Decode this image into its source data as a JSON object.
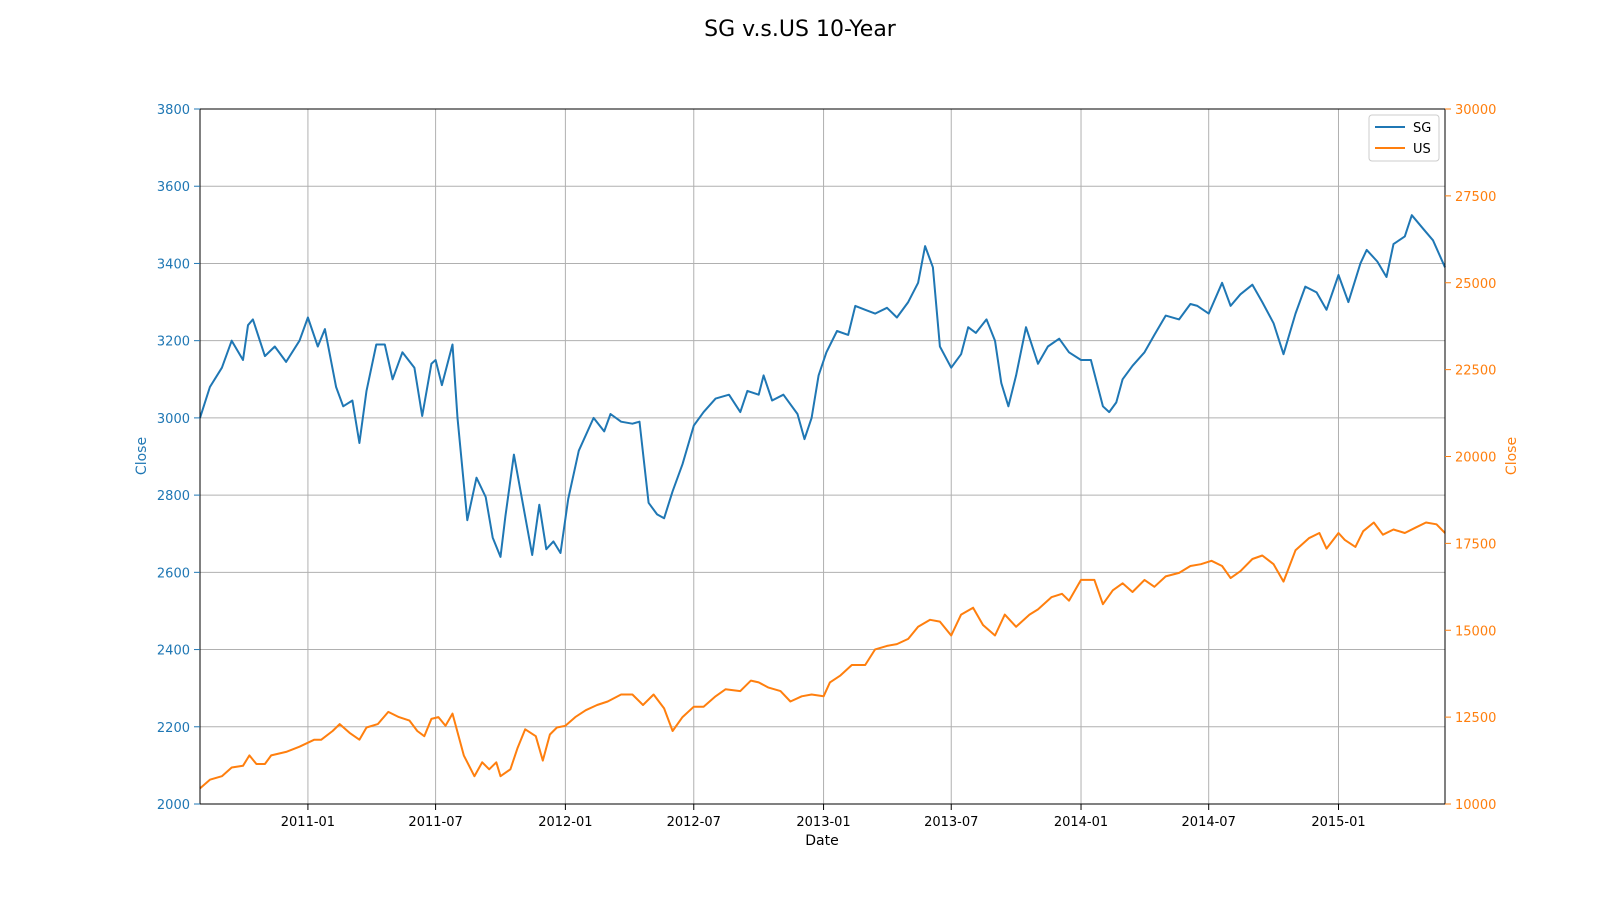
{
  "chart_data": {
    "type": "line",
    "title": "SG v.s.US 10-Year",
    "xlabel": "Date",
    "ylabel_left": "Close",
    "ylabel_right": "Close",
    "xlim": [
      "2010-08-01",
      "2015-06-01"
    ],
    "ylim_left": [
      2000,
      3800
    ],
    "ylim_right": [
      10000,
      30000
    ],
    "x_ticks": [
      "2011-01",
      "2011-07",
      "2012-01",
      "2012-07",
      "2013-01",
      "2013-07",
      "2014-01",
      "2014-07",
      "2015-01"
    ],
    "y_ticks_left": [
      2000,
      2200,
      2400,
      2600,
      2800,
      3000,
      3200,
      3400,
      3600,
      3800
    ],
    "y_ticks_right": [
      10000,
      12500,
      15000,
      17500,
      20000,
      22500,
      25000,
      27500,
      30000
    ],
    "grid": true,
    "legend_position": "top-right",
    "colors": {
      "SG": "#1f77b4",
      "US": "#ff7f0e",
      "axis": "#000000",
      "grid": "#b0b0b0"
    },
    "series": [
      {
        "name": "SG",
        "axis": "left",
        "points": [
          [
            "2010-08-01",
            3000
          ],
          [
            "2010-08-15",
            3080
          ],
          [
            "2010-09-01",
            3130
          ],
          [
            "2010-09-15",
            3200
          ],
          [
            "2010-10-01",
            3150
          ],
          [
            "2010-10-08",
            3240
          ],
          [
            "2010-10-15",
            3255
          ],
          [
            "2010-11-01",
            3160
          ],
          [
            "2010-11-15",
            3185
          ],
          [
            "2010-12-01",
            3145
          ],
          [
            "2010-12-20",
            3200
          ],
          [
            "2011-01-01",
            3260
          ],
          [
            "2011-01-15",
            3185
          ],
          [
            "2011-01-25",
            3230
          ],
          [
            "2011-02-10",
            3080
          ],
          [
            "2011-02-20",
            3030
          ],
          [
            "2011-03-05",
            3045
          ],
          [
            "2011-03-15",
            2935
          ],
          [
            "2011-03-25",
            3070
          ],
          [
            "2011-04-08",
            3190
          ],
          [
            "2011-04-20",
            3190
          ],
          [
            "2011-05-01",
            3100
          ],
          [
            "2011-05-15",
            3170
          ],
          [
            "2011-06-01",
            3130
          ],
          [
            "2011-06-12",
            3005
          ],
          [
            "2011-06-25",
            3140
          ],
          [
            "2011-07-01",
            3150
          ],
          [
            "2011-07-10",
            3085
          ],
          [
            "2011-07-25",
            3190
          ],
          [
            "2011-08-01",
            3000
          ],
          [
            "2011-08-15",
            2735
          ],
          [
            "2011-08-28",
            2845
          ],
          [
            "2011-09-10",
            2795
          ],
          [
            "2011-09-20",
            2690
          ],
          [
            "2011-10-01",
            2640
          ],
          [
            "2011-10-08",
            2745
          ],
          [
            "2011-10-20",
            2905
          ],
          [
            "2011-11-15",
            2645
          ],
          [
            "2011-11-25",
            2775
          ],
          [
            "2011-12-05",
            2660
          ],
          [
            "2011-12-15",
            2680
          ],
          [
            "2011-12-25",
            2650
          ],
          [
            "2012-01-05",
            2790
          ],
          [
            "2012-01-20",
            2915
          ],
          [
            "2012-02-10",
            3000
          ],
          [
            "2012-02-25",
            2965
          ],
          [
            "2012-03-05",
            3010
          ],
          [
            "2012-03-20",
            2990
          ],
          [
            "2012-04-05",
            2985
          ],
          [
            "2012-04-15",
            2990
          ],
          [
            "2012-04-28",
            2780
          ],
          [
            "2012-05-10",
            2750
          ],
          [
            "2012-05-20",
            2740
          ],
          [
            "2012-06-01",
            2810
          ],
          [
            "2012-06-15",
            2880
          ],
          [
            "2012-07-01",
            2980
          ],
          [
            "2012-07-15",
            3015
          ],
          [
            "2012-08-01",
            3050
          ],
          [
            "2012-08-20",
            3060
          ],
          [
            "2012-09-05",
            3015
          ],
          [
            "2012-09-15",
            3070
          ],
          [
            "2012-10-01",
            3060
          ],
          [
            "2012-10-08",
            3110
          ],
          [
            "2012-10-20",
            3045
          ],
          [
            "2012-11-05",
            3060
          ],
          [
            "2012-11-25",
            3010
          ],
          [
            "2012-12-05",
            2945
          ],
          [
            "2012-12-15",
            3000
          ],
          [
            "2012-12-25",
            3110
          ],
          [
            "2013-01-05",
            3170
          ],
          [
            "2013-01-20",
            3225
          ],
          [
            "2013-02-05",
            3215
          ],
          [
            "2013-02-15",
            3290
          ],
          [
            "2013-03-01",
            3280
          ],
          [
            "2013-03-15",
            3270
          ],
          [
            "2013-04-01",
            3285
          ],
          [
            "2013-04-15",
            3260
          ],
          [
            "2013-05-01",
            3300
          ],
          [
            "2013-05-15",
            3350
          ],
          [
            "2013-05-25",
            3445
          ],
          [
            "2013-06-05",
            3390
          ],
          [
            "2013-06-15",
            3185
          ],
          [
            "2013-07-01",
            3130
          ],
          [
            "2013-07-15",
            3165
          ],
          [
            "2013-07-25",
            3235
          ],
          [
            "2013-08-05",
            3220
          ],
          [
            "2013-08-20",
            3255
          ],
          [
            "2013-09-01",
            3200
          ],
          [
            "2013-09-10",
            3090
          ],
          [
            "2013-09-20",
            3030
          ],
          [
            "2013-10-01",
            3110
          ],
          [
            "2013-10-15",
            3235
          ],
          [
            "2013-11-01",
            3140
          ],
          [
            "2013-11-15",
            3185
          ],
          [
            "2013-12-01",
            3205
          ],
          [
            "2013-12-15",
            3170
          ],
          [
            "2014-01-01",
            3150
          ],
          [
            "2014-01-15",
            3150
          ],
          [
            "2014-02-01",
            3030
          ],
          [
            "2014-02-10",
            3015
          ],
          [
            "2014-02-20",
            3040
          ],
          [
            "2014-03-01",
            3100
          ],
          [
            "2014-03-15",
            3135
          ],
          [
            "2014-04-01",
            3170
          ],
          [
            "2014-04-15",
            3215
          ],
          [
            "2014-05-01",
            3265
          ],
          [
            "2014-05-20",
            3255
          ],
          [
            "2014-06-05",
            3295
          ],
          [
            "2014-06-15",
            3290
          ],
          [
            "2014-07-01",
            3270
          ],
          [
            "2014-07-20",
            3350
          ],
          [
            "2014-08-01",
            3290
          ],
          [
            "2014-08-15",
            3320
          ],
          [
            "2014-09-01",
            3345
          ],
          [
            "2014-09-15",
            3300
          ],
          [
            "2014-10-01",
            3245
          ],
          [
            "2014-10-15",
            3165
          ],
          [
            "2014-11-01",
            3270
          ],
          [
            "2014-11-15",
            3340
          ],
          [
            "2014-12-01",
            3325
          ],
          [
            "2014-12-15",
            3280
          ],
          [
            "2015-01-01",
            3370
          ],
          [
            "2015-01-15",
            3300
          ],
          [
            "2015-02-01",
            3400
          ],
          [
            "2015-02-10",
            3435
          ],
          [
            "2015-02-25",
            3405
          ],
          [
            "2015-03-10",
            3365
          ],
          [
            "2015-03-20",
            3450
          ],
          [
            "2015-04-05",
            3470
          ],
          [
            "2015-04-15",
            3525
          ],
          [
            "2015-05-01",
            3490
          ],
          [
            "2015-05-15",
            3460
          ],
          [
            "2015-06-01",
            3390
          ]
        ]
      },
      {
        "name": "US",
        "axis": "right",
        "points": [
          [
            "2010-08-01",
            10450
          ],
          [
            "2010-08-15",
            10700
          ],
          [
            "2010-09-01",
            10800
          ],
          [
            "2010-09-15",
            11050
          ],
          [
            "2010-10-01",
            11100
          ],
          [
            "2010-10-10",
            11400
          ],
          [
            "2010-10-20",
            11150
          ],
          [
            "2010-11-01",
            11150
          ],
          [
            "2010-11-10",
            11400
          ],
          [
            "2010-12-01",
            11500
          ],
          [
            "2010-12-20",
            11650
          ],
          [
            "2011-01-10",
            11850
          ],
          [
            "2011-01-20",
            11850
          ],
          [
            "2011-02-05",
            12100
          ],
          [
            "2011-02-15",
            12300
          ],
          [
            "2011-03-01",
            12050
          ],
          [
            "2011-03-15",
            11850
          ],
          [
            "2011-03-25",
            12200
          ],
          [
            "2011-04-10",
            12300
          ],
          [
            "2011-04-25",
            12650
          ],
          [
            "2011-05-10",
            12500
          ],
          [
            "2011-05-25",
            12400
          ],
          [
            "2011-06-05",
            12100
          ],
          [
            "2011-06-15",
            11950
          ],
          [
            "2011-06-25",
            12450
          ],
          [
            "2011-07-05",
            12500
          ],
          [
            "2011-07-15",
            12250
          ],
          [
            "2011-07-25",
            12600
          ],
          [
            "2011-08-10",
            11400
          ],
          [
            "2011-08-25",
            10800
          ],
          [
            "2011-09-05",
            11200
          ],
          [
            "2011-09-15",
            11000
          ],
          [
            "2011-09-25",
            11200
          ],
          [
            "2011-10-01",
            10800
          ],
          [
            "2011-10-15",
            11000
          ],
          [
            "2011-10-25",
            11600
          ],
          [
            "2011-11-05",
            12150
          ],
          [
            "2011-11-20",
            11950
          ],
          [
            "2011-11-30",
            11250
          ],
          [
            "2011-12-10",
            12000
          ],
          [
            "2011-12-20",
            12200
          ],
          [
            "2012-01-01",
            12250
          ],
          [
            "2012-01-15",
            12500
          ],
          [
            "2012-01-30",
            12700
          ],
          [
            "2012-02-15",
            12850
          ],
          [
            "2012-03-01",
            12950
          ],
          [
            "2012-03-20",
            13150
          ],
          [
            "2012-04-05",
            13150
          ],
          [
            "2012-04-20",
            12850
          ],
          [
            "2012-05-05",
            13150
          ],
          [
            "2012-05-20",
            12750
          ],
          [
            "2012-06-01",
            12100
          ],
          [
            "2012-06-15",
            12500
          ],
          [
            "2012-07-01",
            12800
          ],
          [
            "2012-07-15",
            12800
          ],
          [
            "2012-08-01",
            13100
          ],
          [
            "2012-08-15",
            13300
          ],
          [
            "2012-09-05",
            13250
          ],
          [
            "2012-09-20",
            13550
          ],
          [
            "2012-10-01",
            13500
          ],
          [
            "2012-10-15",
            13350
          ],
          [
            "2012-11-01",
            13250
          ],
          [
            "2012-11-15",
            12950
          ],
          [
            "2012-12-01",
            13100
          ],
          [
            "2012-12-15",
            13150
          ],
          [
            "2013-01-01",
            13100
          ],
          [
            "2013-01-10",
            13500
          ],
          [
            "2013-01-25",
            13700
          ],
          [
            "2013-02-10",
            14000
          ],
          [
            "2013-03-01",
            14000
          ],
          [
            "2013-03-15",
            14450
          ],
          [
            "2013-04-01",
            14550
          ],
          [
            "2013-04-15",
            14600
          ],
          [
            "2013-05-01",
            14750
          ],
          [
            "2013-05-15",
            15100
          ],
          [
            "2013-06-01",
            15300
          ],
          [
            "2013-06-15",
            15250
          ],
          [
            "2013-07-01",
            14850
          ],
          [
            "2013-07-15",
            15450
          ],
          [
            "2013-08-01",
            15650
          ],
          [
            "2013-08-15",
            15150
          ],
          [
            "2013-09-01",
            14850
          ],
          [
            "2013-09-15",
            15450
          ],
          [
            "2013-10-01",
            15100
          ],
          [
            "2013-10-20",
            15450
          ],
          [
            "2013-11-01",
            15600
          ],
          [
            "2013-11-20",
            15950
          ],
          [
            "2013-12-05",
            16050
          ],
          [
            "2013-12-15",
            15850
          ],
          [
            "2014-01-01",
            16450
          ],
          [
            "2014-01-20",
            16450
          ],
          [
            "2014-02-01",
            15750
          ],
          [
            "2014-02-15",
            16150
          ],
          [
            "2014-03-01",
            16350
          ],
          [
            "2014-03-15",
            16100
          ],
          [
            "2014-04-01",
            16450
          ],
          [
            "2014-04-15",
            16250
          ],
          [
            "2014-05-01",
            16550
          ],
          [
            "2014-05-20",
            16650
          ],
          [
            "2014-06-05",
            16850
          ],
          [
            "2014-06-20",
            16900
          ],
          [
            "2014-07-05",
            17000
          ],
          [
            "2014-07-20",
            16850
          ],
          [
            "2014-08-01",
            16500
          ],
          [
            "2014-08-15",
            16700
          ],
          [
            "2014-09-01",
            17050
          ],
          [
            "2014-09-15",
            17150
          ],
          [
            "2014-10-01",
            16900
          ],
          [
            "2014-10-15",
            16400
          ],
          [
            "2014-11-01",
            17300
          ],
          [
            "2014-11-20",
            17650
          ],
          [
            "2014-12-05",
            17800
          ],
          [
            "2014-12-15",
            17350
          ],
          [
            "2015-01-01",
            17800
          ],
          [
            "2015-01-10",
            17600
          ],
          [
            "2015-01-25",
            17400
          ],
          [
            "2015-02-05",
            17850
          ],
          [
            "2015-02-20",
            18100
          ],
          [
            "2015-03-05",
            17750
          ],
          [
            "2015-03-20",
            17900
          ],
          [
            "2015-04-05",
            17800
          ],
          [
            "2015-04-20",
            17950
          ],
          [
            "2015-05-05",
            18100
          ],
          [
            "2015-05-20",
            18050
          ],
          [
            "2015-06-01",
            17800
          ]
        ]
      }
    ]
  }
}
